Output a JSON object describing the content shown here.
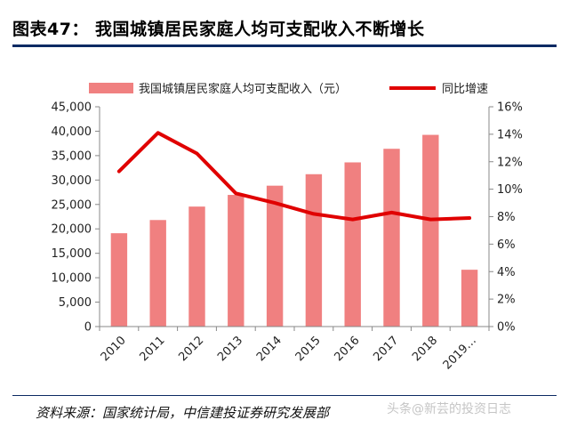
{
  "figure": {
    "title": "图表47：   我国城镇居民家庭人均可支配收入不断增长",
    "source": "资料来源：国家统计局，中信建投证券研究发展部",
    "watermark": "头条@新芸的投资日志"
  },
  "colors": {
    "bar": "#f08080",
    "line": "#e00000",
    "axis": "#888888",
    "title_rule": "#0b2a63"
  },
  "chart_data": {
    "type": "bar",
    "categories": [
      "2010",
      "2011",
      "2012",
      "2013",
      "2014",
      "2015",
      "2016",
      "2017",
      "2018",
      "2019…"
    ],
    "series": [
      {
        "name": "我国城镇居民家庭人均可支配收入（元）",
        "type": "bar",
        "axis": "left",
        "values": [
          19109,
          21810,
          24565,
          26955,
          28844,
          31195,
          33616,
          36396,
          39251,
          11633
        ]
      },
      {
        "name": "同比增速",
        "type": "line",
        "axis": "right",
        "values": [
          11.3,
          14.1,
          12.6,
          9.7,
          9.0,
          8.2,
          7.8,
          8.3,
          7.8,
          7.9
        ]
      }
    ],
    "y_left": {
      "lim": [
        0,
        45000
      ],
      "ticks": [
        0,
        5000,
        10000,
        15000,
        20000,
        25000,
        30000,
        35000,
        40000,
        45000
      ],
      "tick_labels": [
        "0",
        "5,000",
        "10,000",
        "15,000",
        "20,000",
        "25,000",
        "30,000",
        "35,000",
        "40,000",
        "45,000"
      ]
    },
    "y_right": {
      "lim": [
        0,
        16
      ],
      "ticks": [
        0,
        2,
        4,
        6,
        8,
        10,
        12,
        14,
        16
      ],
      "tick_labels": [
        "0%",
        "2%",
        "4%",
        "6%",
        "8%",
        "10%",
        "12%",
        "14%",
        "16%"
      ]
    },
    "legend": "top",
    "grid": false
  }
}
